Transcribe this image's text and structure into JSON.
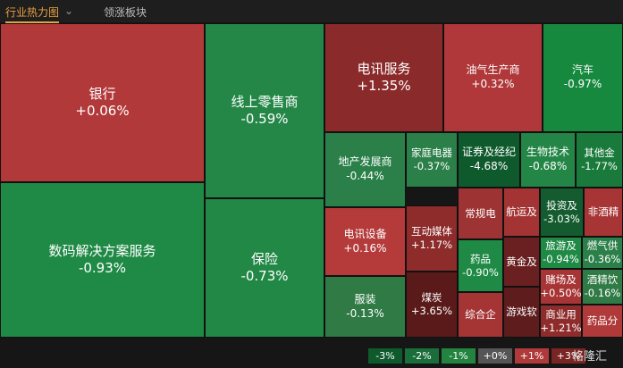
{
  "header": {
    "tabs": [
      "行业热力图",
      "领涨板块"
    ]
  },
  "tiles": [
    {
      "name": "银行",
      "change": "+0.06%",
      "color": "#b2393a"
    },
    {
      "name": "数码解决方案服务",
      "change": "-0.93%",
      "color": "#1f8a45"
    },
    {
      "name": "线上零售商",
      "change": "-0.59%",
      "color": "#248748"
    },
    {
      "name": "保险",
      "change": "-0.73%",
      "color": "#228846"
    },
    {
      "name": "电讯服务",
      "change": "+1.35%",
      "color": "#8b2a2a"
    },
    {
      "name": "油气生产商",
      "change": "+0.32%",
      "color": "#b0383a"
    },
    {
      "name": "汽车",
      "change": "-0.97%",
      "color": "#17893f"
    },
    {
      "name": "地产发展商",
      "change": "-0.44%",
      "color": "#2a8048"
    },
    {
      "name": "家庭电器",
      "change": "-0.37%",
      "color": "#2b7f48"
    },
    {
      "name": "证券及经纪",
      "change": "-4.68%",
      "color": "#0e5a2c"
    },
    {
      "name": "生物技术",
      "change": "-0.68%",
      "color": "#238646"
    },
    {
      "name": "其他金",
      "change": "-1.77%",
      "color": "#1a7a3c"
    },
    {
      "name": "电讯设备",
      "change": "+0.16%",
      "color": "#b53b3b"
    },
    {
      "name": "服装",
      "change": "-0.13%",
      "color": "#2f7a45"
    },
    {
      "name": "互动媒体",
      "change": "+1.17%",
      "color": "#8e2b2b"
    },
    {
      "name": "煤炭",
      "change": "+3.65%",
      "color": "#5a1a1a"
    },
    {
      "name": "常规电",
      "color": "#9e3333"
    },
    {
      "name": "航运及",
      "color": "#a43434"
    },
    {
      "name": "投资及",
      "change": "-3.03%",
      "color": "#145c30"
    },
    {
      "name": "非酒精",
      "color": "#a83535"
    },
    {
      "name": "药品",
      "change": "-0.90%",
      "color": "#1f8a45"
    },
    {
      "name": "综合企",
      "color": "#a53535"
    },
    {
      "name": "黄金及",
      "color": "#6a2020"
    },
    {
      "name": "游戏软",
      "color": "#5e1c1c"
    },
    {
      "name": "旅游及",
      "change": "-0.94%",
      "color": "#1f8a45"
    },
    {
      "name": "燃气供",
      "change": "-0.36%",
      "color": "#2b7f48"
    },
    {
      "name": "赌场及",
      "change": "+0.50%",
      "color": "#a83535"
    },
    {
      "name": "酒精饮",
      "change": "-0.16%",
      "color": "#2f7a45"
    },
    {
      "name": "商业用",
      "change": "+1.21%",
      "color": "#8e2b2b"
    },
    {
      "name": "药品分",
      "color": "#b03a3a"
    }
  ],
  "legend": [
    {
      "label": "-3%",
      "color": "#0f5a2c"
    },
    {
      "label": "-2%",
      "color": "#1a6e3a"
    },
    {
      "label": "-1%",
      "color": "#23843f"
    },
    {
      "label": "+0%",
      "color": "#555555"
    },
    {
      "label": "+1%",
      "color": "#b03a3a"
    },
    {
      "label": "+3%",
      "color": "#7a2424"
    }
  ],
  "watermark": "格隆汇"
}
